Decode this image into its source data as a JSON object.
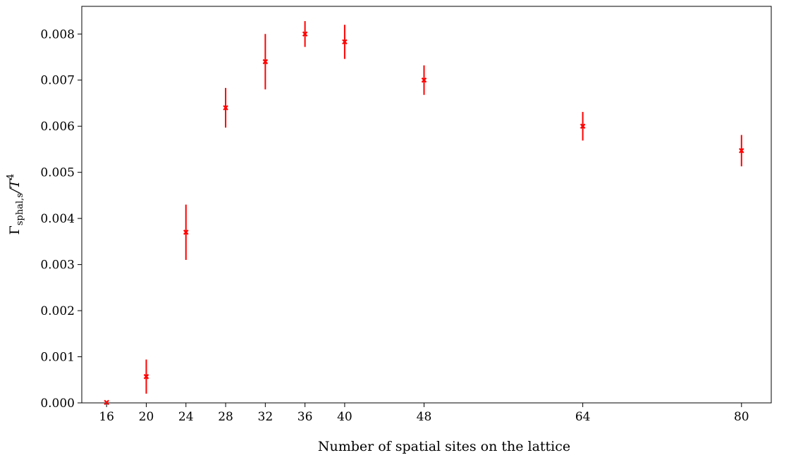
{
  "chart_data": {
    "type": "scatter",
    "xlabel": "Number of spatial sites on the lattice",
    "ylabel": {
      "main": "Γ",
      "sub": "sphal,s",
      "mid": "/T",
      "sup": "4"
    },
    "xlim": [
      13.5,
      83.0
    ],
    "ylim": [
      0.0,
      0.0086
    ],
    "xticks": [
      16,
      20,
      24,
      28,
      32,
      36,
      40,
      48,
      64,
      80
    ],
    "xtick_labels": [
      "16",
      "20",
      "24",
      "28",
      "32",
      "36",
      "40",
      "48",
      "64",
      "80"
    ],
    "yticks": [
      0.0,
      0.001,
      0.002,
      0.003,
      0.004,
      0.005,
      0.006,
      0.007,
      0.008
    ],
    "ytick_labels": [
      "0.000",
      "0.001",
      "0.002",
      "0.003",
      "0.004",
      "0.005",
      "0.006",
      "0.007",
      "0.008"
    ],
    "grid": false,
    "marker": "x",
    "color": "#ff0000",
    "series": [
      {
        "x": [
          16,
          20,
          24,
          28,
          32,
          36,
          40,
          48,
          64,
          80
        ],
        "y": [
          1e-05,
          0.00057,
          0.0037,
          0.0064,
          0.0074,
          0.008,
          0.00783,
          0.007,
          0.006,
          0.00547
        ],
        "yerr": [
          1e-05,
          0.00037,
          0.0006,
          0.00043,
          0.0006,
          0.00028,
          0.00037,
          0.00032,
          0.00031,
          0.00034
        ]
      }
    ]
  }
}
